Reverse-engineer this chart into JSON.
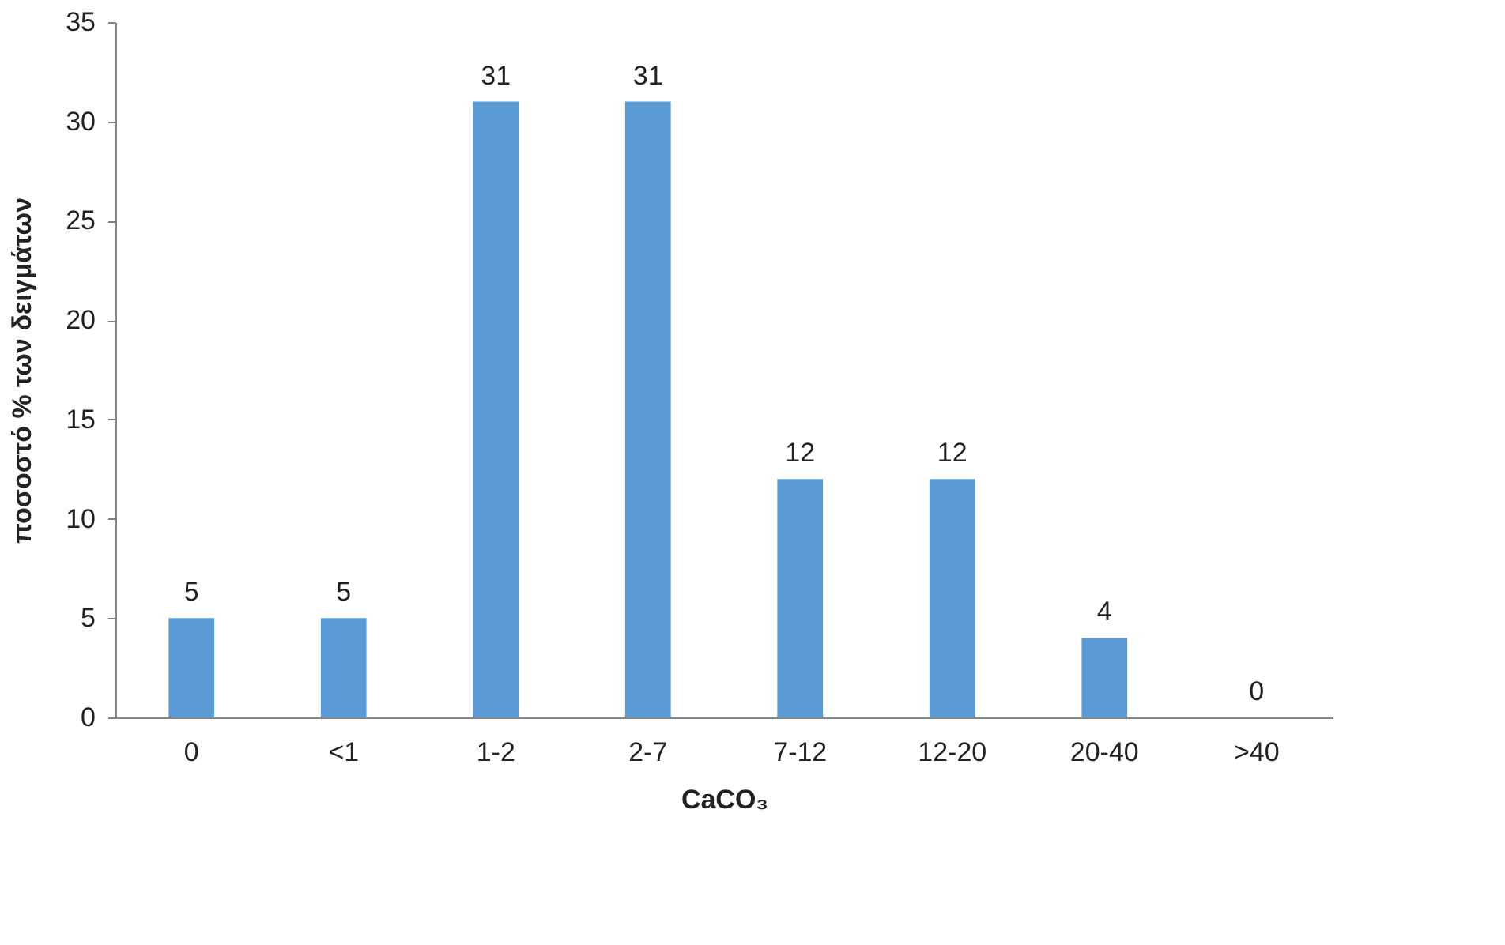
{
  "chart_data": {
    "type": "bar",
    "categories": [
      "0",
      "<1",
      "1-2",
      "2-7",
      "7-12",
      "12-20",
      "20-40",
      ">40"
    ],
    "values": [
      5,
      5,
      31,
      31,
      12,
      12,
      4,
      0
    ],
    "color": "#5b9bd5",
    "xlabel": "CaCO₃",
    "ylabel": "ποσοστό % των δειγμάτων",
    "ylim": [
      0,
      35
    ],
    "yticks": [
      0,
      5,
      10,
      15,
      20,
      25,
      30,
      35
    ],
    "grid": false,
    "data_labels": true
  }
}
